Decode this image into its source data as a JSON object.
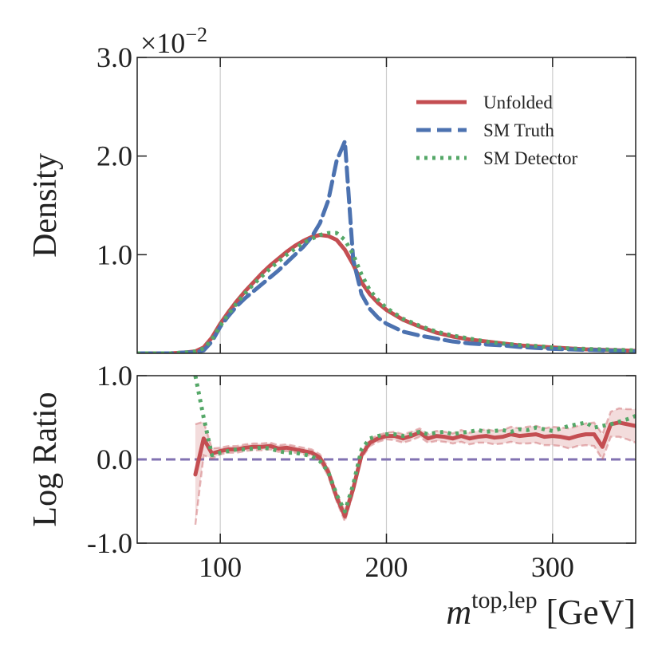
{
  "chart_data": [
    {
      "type": "line",
      "ylabel": "Density",
      "y_offset_label": {
        "base": "×10",
        "exponent": "−2"
      },
      "xlim": [
        50,
        350
      ],
      "xticks": [
        100,
        200,
        300
      ],
      "ylim": [
        0,
        3
      ],
      "yticks": [
        {
          "value": 1,
          "label": "1.0"
        },
        {
          "value": 2,
          "label": "2.0"
        },
        {
          "value": 3,
          "label": "3.0"
        }
      ],
      "grid": true,
      "legend": "upper right",
      "x": [
        50,
        60,
        70,
        80,
        85,
        90,
        95,
        100,
        105,
        110,
        115,
        120,
        125,
        130,
        135,
        140,
        145,
        150,
        155,
        160,
        165,
        170,
        175,
        180,
        185,
        190,
        195,
        200,
        210,
        220,
        230,
        240,
        250,
        260,
        270,
        280,
        290,
        300,
        310,
        320,
        330,
        340,
        350
      ],
      "series": [
        {
          "name": "Unfolded",
          "color": "#c44e52",
          "style": "solid",
          "values": [
            0,
            0,
            0,
            0.01,
            0.02,
            0.06,
            0.16,
            0.3,
            0.42,
            0.53,
            0.63,
            0.72,
            0.81,
            0.89,
            0.96,
            1.03,
            1.09,
            1.14,
            1.18,
            1.2,
            1.19,
            1.15,
            1.05,
            0.9,
            0.72,
            0.6,
            0.51,
            0.44,
            0.34,
            0.27,
            0.21,
            0.17,
            0.14,
            0.12,
            0.1,
            0.08,
            0.07,
            0.06,
            0.05,
            0.04,
            0.035,
            0.03,
            0.025
          ]
        },
        {
          "name": "SM Truth",
          "color": "#4c72b0",
          "style": "dashed",
          "values": [
            0,
            0,
            0,
            0.01,
            0.01,
            0.03,
            0.12,
            0.27,
            0.38,
            0.48,
            0.56,
            0.63,
            0.7,
            0.77,
            0.84,
            0.92,
            1.0,
            1.08,
            1.18,
            1.32,
            1.55,
            1.95,
            2.15,
            0.95,
            0.6,
            0.45,
            0.36,
            0.3,
            0.22,
            0.18,
            0.15,
            0.12,
            0.1,
            0.09,
            0.08,
            0.065,
            0.055,
            0.045,
            0.04,
            0.035,
            0.03,
            0.025,
            0.02
          ]
        },
        {
          "name": "SM Detector",
          "color": "#55a868",
          "style": "dotted",
          "values": [
            0,
            0,
            0,
            0.01,
            0.02,
            0.05,
            0.14,
            0.28,
            0.4,
            0.51,
            0.61,
            0.7,
            0.78,
            0.86,
            0.93,
            1.0,
            1.06,
            1.12,
            1.16,
            1.2,
            1.22,
            1.22,
            1.15,
            1.0,
            0.8,
            0.64,
            0.54,
            0.46,
            0.35,
            0.28,
            0.22,
            0.18,
            0.15,
            0.12,
            0.1,
            0.085,
            0.075,
            0.06,
            0.05,
            0.045,
            0.04,
            0.035,
            0.03
          ]
        }
      ]
    },
    {
      "type": "line",
      "ylabel": "Log Ratio",
      "xlabel": {
        "base": "m",
        "superscript": "top,lep",
        "unit": "[GeV]"
      },
      "xlim": [
        50,
        350
      ],
      "xticks": [
        100,
        200,
        300
      ],
      "ylim": [
        -1,
        1
      ],
      "yticks": [
        {
          "value": -1,
          "label": "-1.0"
        },
        {
          "value": 0,
          "label": "0.0"
        },
        {
          "value": 1,
          "label": "1.0"
        }
      ],
      "grid": true,
      "reference_line": {
        "value": 0,
        "color": "#8172b2",
        "style": "dashed"
      },
      "x": [
        85,
        90,
        95,
        100,
        105,
        110,
        115,
        120,
        125,
        130,
        135,
        140,
        145,
        150,
        155,
        160,
        165,
        170,
        175,
        180,
        185,
        190,
        195,
        200,
        205,
        210,
        215,
        220,
        225,
        230,
        235,
        240,
        245,
        250,
        255,
        260,
        265,
        270,
        275,
        280,
        285,
        290,
        295,
        300,
        305,
        310,
        315,
        320,
        325,
        330,
        335,
        340,
        345,
        350
      ],
      "series": [
        {
          "color": "#c44e52",
          "style": "solid",
          "values": [
            -0.18,
            0.25,
            0.07,
            0.1,
            0.12,
            0.12,
            0.14,
            0.15,
            0.15,
            0.16,
            0.13,
            0.14,
            0.12,
            0.1,
            0.08,
            0.02,
            -0.15,
            -0.45,
            -0.68,
            -0.35,
            0.05,
            0.2,
            0.25,
            0.28,
            0.28,
            0.25,
            0.28,
            0.32,
            0.25,
            0.28,
            0.27,
            0.25,
            0.28,
            0.25,
            0.27,
            0.28,
            0.26,
            0.27,
            0.3,
            0.28,
            0.29,
            0.3,
            0.27,
            0.28,
            0.27,
            0.25,
            0.28,
            0.3,
            0.3,
            0.15,
            0.42,
            0.44,
            0.42,
            0.4
          ],
          "errors": [
            0.6,
            0.2,
            0.06,
            0.04,
            0.04,
            0.04,
            0.04,
            0.04,
            0.04,
            0.04,
            0.04,
            0.04,
            0.04,
            0.04,
            0.04,
            0.04,
            0.05,
            0.05,
            0.06,
            0.05,
            0.04,
            0.04,
            0.04,
            0.04,
            0.05,
            0.05,
            0.05,
            0.05,
            0.05,
            0.06,
            0.06,
            0.06,
            0.07,
            0.07,
            0.07,
            0.08,
            0.08,
            0.08,
            0.09,
            0.09,
            0.1,
            0.1,
            0.1,
            0.11,
            0.11,
            0.12,
            0.12,
            0.13,
            0.14,
            0.15,
            0.15,
            0.17,
            0.18,
            0.2
          ]
        },
        {
          "color": "#55a868",
          "style": "dotted",
          "values": [
            1.0,
            0.5,
            0.05,
            0.08,
            0.1,
            0.12,
            0.12,
            0.13,
            0.14,
            0.13,
            0.1,
            0.08,
            0.08,
            0.06,
            0.04,
            -0.02,
            -0.15,
            -0.42,
            -0.62,
            -0.3,
            0.12,
            0.25,
            0.28,
            0.3,
            0.3,
            0.28,
            0.3,
            0.33,
            0.3,
            0.32,
            0.33,
            0.3,
            0.32,
            0.33,
            0.35,
            0.33,
            0.34,
            0.35,
            0.33,
            0.36,
            0.35,
            0.38,
            0.36,
            0.34,
            0.37,
            0.4,
            0.42,
            0.44,
            0.38,
            0.4,
            0.42,
            0.45,
            0.48,
            0.52
          ]
        }
      ]
    }
  ]
}
